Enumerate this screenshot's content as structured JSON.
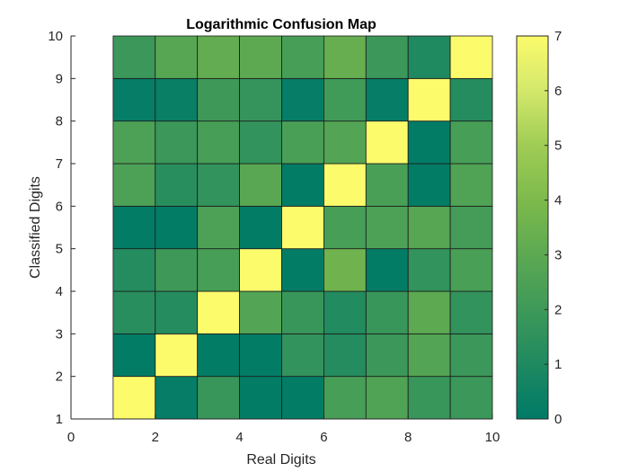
{
  "chart_data": {
    "type": "heatmap",
    "title": "Logarithmic Confusion Map",
    "xlabel": "Real Digits",
    "ylabel": "Classified Digits",
    "xlim": [
      0,
      10
    ],
    "ylim": [
      1,
      10
    ],
    "xticks": [
      "0",
      "2",
      "4",
      "6",
      "8",
      "10"
    ],
    "yticks": [
      "1",
      "2",
      "3",
      "4",
      "5",
      "6",
      "7",
      "8",
      "9",
      "10"
    ],
    "colorbar": {
      "min": 0,
      "max": 7,
      "ticks": [
        "0",
        "1",
        "2",
        "3",
        "4",
        "5",
        "6",
        "7"
      ]
    },
    "colormap": [
      "#007a67",
      "#1f8960",
      "#3e9959",
      "#5ca952",
      "#7dba4c",
      "#9fcc55",
      "#d3e86b",
      "#fcfb6b"
    ],
    "cell_x": [
      1,
      2,
      3,
      4,
      5,
      6,
      7,
      8,
      9
    ],
    "cell_y": [
      1,
      2,
      3,
      4,
      5,
      6,
      7,
      8,
      9
    ],
    "z": [
      [
        7.0,
        0.2,
        1.8,
        0.1,
        0.1,
        2.3,
        2.6,
        1.8,
        1.9
      ],
      [
        0.1,
        7.0,
        0.1,
        0.1,
        1.6,
        1.2,
        1.9,
        2.7,
        1.9
      ],
      [
        1.3,
        1.2,
        7.0,
        2.7,
        1.8,
        1.1,
        1.8,
        3.0,
        1.6
      ],
      [
        1.2,
        2.0,
        2.3,
        7.0,
        0.1,
        3.6,
        0.1,
        1.6,
        2.4
      ],
      [
        0.1,
        0.1,
        2.5,
        0.1,
        7.0,
        2.3,
        2.5,
        2.8,
        2.2
      ],
      [
        2.5,
        1.3,
        1.6,
        2.9,
        0.1,
        7.0,
        2.4,
        0.1,
        2.6
      ],
      [
        2.5,
        1.9,
        2.3,
        1.6,
        2.4,
        2.7,
        7.0,
        0.1,
        2.3
      ],
      [
        0.2,
        0.3,
        2.0,
        1.7,
        0.2,
        2.1,
        0.2,
        7.0,
        1.2
      ],
      [
        1.9,
        2.8,
        3.2,
        3.0,
        2.3,
        3.3,
        1.9,
        1.0,
        7.0
      ]
    ]
  }
}
